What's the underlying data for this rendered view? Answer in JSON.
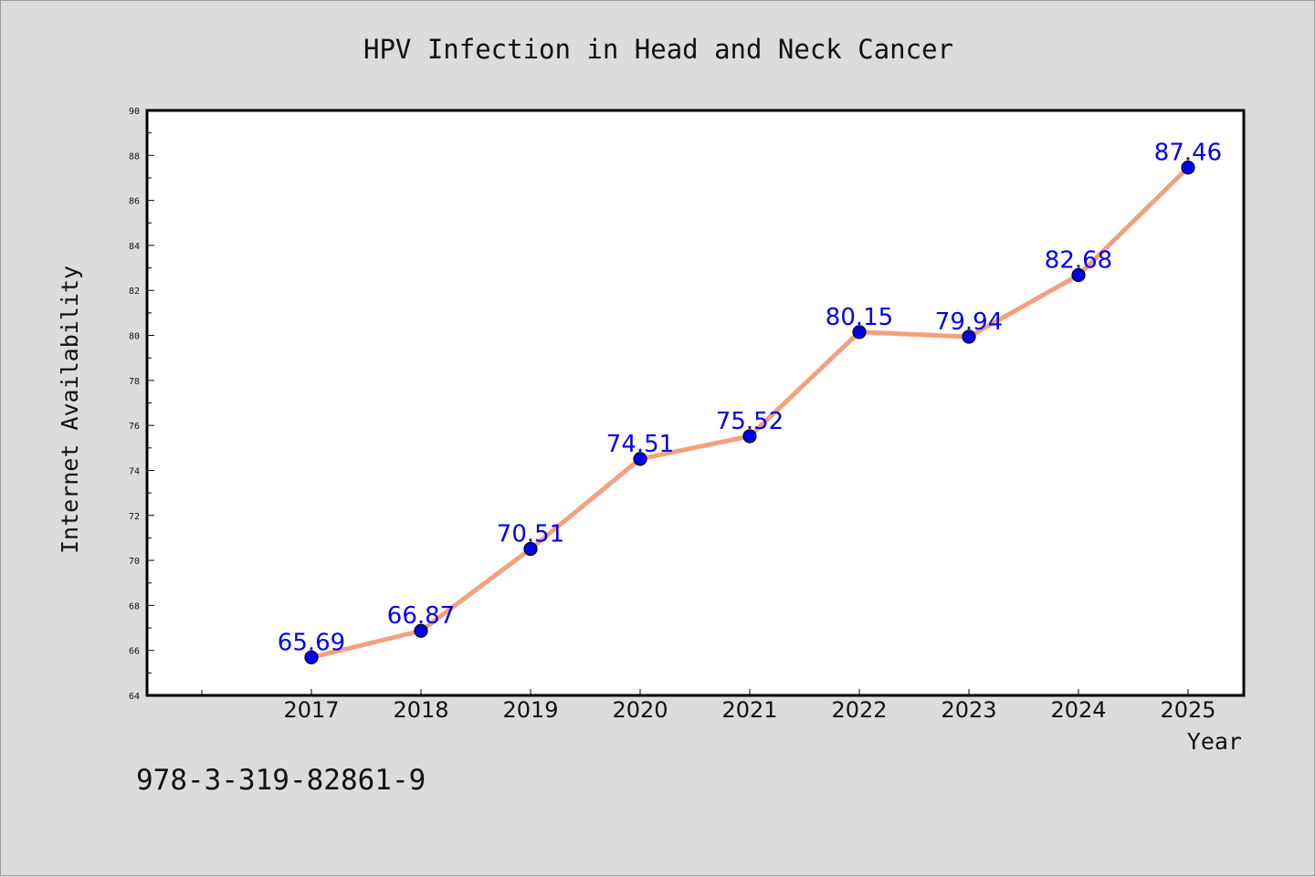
{
  "chart_data": {
    "type": "line",
    "title": "HPV Infection in Head and Neck Cancer",
    "xlabel": "Year",
    "ylabel": "Internet Availability",
    "categories": [
      "2017",
      "2018",
      "2019",
      "2020",
      "2021",
      "2022",
      "2023",
      "2024",
      "2025"
    ],
    "series": [
      {
        "values": [
          65.69,
          66.87,
          70.51,
          74.51,
          75.52,
          80.15,
          79.94,
          82.68,
          87.46
        ],
        "labels": [
          "65.69",
          "66.87",
          "70.51",
          "74.51",
          "75.52",
          "80.15",
          "79.94",
          "82.68",
          "87.46"
        ],
        "line_color": "#f4a07e",
        "marker_color": "#0000ee"
      }
    ],
    "ylim": [
      64,
      90
    ],
    "yticks": [
      "64",
      "66",
      "68",
      "70",
      "72",
      "74",
      "76",
      "78",
      "80",
      "82",
      "84",
      "86",
      "88",
      "90"
    ],
    "grid": false,
    "legend": "none"
  },
  "footer": {
    "isbn": "978-3-319-82861-9"
  },
  "colors": {
    "background": "#dcdcdc",
    "plot_area": "#ffffff"
  }
}
